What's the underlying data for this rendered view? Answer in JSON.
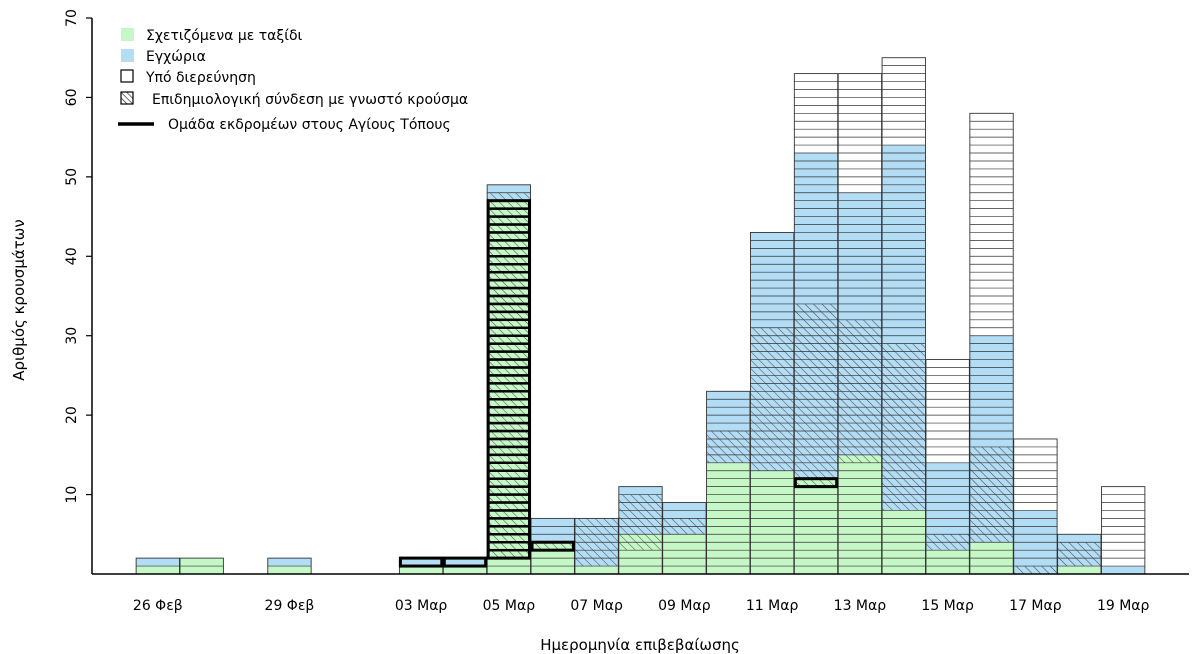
{
  "chart_data": {
    "type": "bar",
    "stacked": true,
    "xlabel": "Ημερομηνία επιβεβαίωσης",
    "ylabel": "Αριθμός κρουσμάτων",
    "ylim": [
      0,
      70
    ],
    "yticks": [
      10,
      20,
      30,
      40,
      50,
      60,
      70
    ],
    "grid": false,
    "legend_position": "top-left",
    "day_range": [
      "2020-02-25",
      "2020-03-20"
    ],
    "xtick_dates": [
      "2020-02-26",
      "2020-02-29",
      "2020-03-03",
      "2020-03-05",
      "2020-03-07",
      "2020-03-09",
      "2020-03-11",
      "2020-03-13",
      "2020-03-15",
      "2020-03-17",
      "2020-03-19"
    ],
    "xtick_labels": [
      "26 Φεβ",
      "29 Φεβ",
      "03 Μαρ",
      "05 Μαρ",
      "07 Μαρ",
      "09 Μαρ",
      "11 Μαρ",
      "13 Μαρ",
      "15 Μαρ",
      "17 Μαρ",
      "19 Μαρ"
    ],
    "colors": {
      "travel": "#c6f7c6",
      "local": "#b3dcf5",
      "outline": "#333333",
      "highlight": "#000000"
    },
    "legend": {
      "travel": "Σχετιζόμενα με ταξίδι",
      "local": "Εγχώρια",
      "under_investigation": "Υπό διερεύνηση",
      "epi_link": "Επιδημιολογική σύνδεση με γνωστό κρούσμα",
      "pilgrim_group": "Ομάδα εκδρομέων στους Αγίους Τόπους"
    },
    "bars": [
      {
        "date": "2020-02-26",
        "travel": 1,
        "travel_link": 0,
        "local_link": 0,
        "local": 1,
        "investigation": 0,
        "group": 0
      },
      {
        "date": "2020-02-27",
        "travel": 2,
        "travel_link": 0,
        "local_link": 0,
        "local": 0,
        "investigation": 0,
        "group": 0
      },
      {
        "date": "2020-02-29",
        "travel": 1,
        "travel_link": 0,
        "local_link": 0,
        "local": 1,
        "investigation": 0,
        "group": 0
      },
      {
        "date": "2020-03-03",
        "travel": 1,
        "travel_link": 0,
        "local_link": 0,
        "local": 1,
        "investigation": 0,
        "group": 1
      },
      {
        "date": "2020-03-04",
        "travel": 1,
        "travel_link": 0,
        "local_link": 0,
        "local": 1,
        "investigation": 0,
        "group": 1
      },
      {
        "date": "2020-03-05",
        "travel": 2,
        "travel_link": 45,
        "local_link": 1,
        "local": 1,
        "investigation": 0,
        "group": 45
      },
      {
        "date": "2020-03-06",
        "travel": 3,
        "travel_link": 1,
        "local_link": 0,
        "local": 3,
        "investigation": 0,
        "group": 1
      },
      {
        "date": "2020-03-07",
        "travel": 1,
        "travel_link": 0,
        "local_link": 6,
        "local": 0,
        "investigation": 0,
        "group": 0
      },
      {
        "date": "2020-03-08",
        "travel": 3,
        "travel_link": 2,
        "local_link": 5,
        "local": 1,
        "investigation": 0,
        "group": 0
      },
      {
        "date": "2020-03-09",
        "travel": 5,
        "travel_link": 0,
        "local_link": 2,
        "local": 2,
        "investigation": 0,
        "group": 0
      },
      {
        "date": "2020-03-10",
        "travel": 14,
        "travel_link": 0,
        "local_link": 4,
        "local": 5,
        "investigation": 0,
        "group": 0
      },
      {
        "date": "2020-03-11",
        "travel": 13,
        "travel_link": 0,
        "local_link": 18,
        "local": 12,
        "investigation": 0,
        "group": 0
      },
      {
        "date": "2020-03-12",
        "travel": 11,
        "travel_link": 1,
        "local_link": 22,
        "local": 19,
        "investigation": 10,
        "group": 1
      },
      {
        "date": "2020-03-13",
        "travel": 14,
        "travel_link": 1,
        "local_link": 17,
        "local": 16,
        "investigation": 15,
        "group": 0
      },
      {
        "date": "2020-03-14",
        "travel": 8,
        "travel_link": 0,
        "local_link": 21,
        "local": 25,
        "investigation": 11,
        "group": 0
      },
      {
        "date": "2020-03-15",
        "travel": 3,
        "travel_link": 0,
        "local_link": 2,
        "local": 9,
        "investigation": 13,
        "group": 0
      },
      {
        "date": "2020-03-16",
        "travel": 4,
        "travel_link": 0,
        "local_link": 12,
        "local": 14,
        "investigation": 28,
        "group": 0
      },
      {
        "date": "2020-03-17",
        "travel": 0,
        "travel_link": 0,
        "local_link": 1,
        "local": 7,
        "investigation": 9,
        "group": 0
      },
      {
        "date": "2020-03-18",
        "travel": 1,
        "travel_link": 0,
        "local_link": 3,
        "local": 1,
        "investigation": 0,
        "group": 0
      },
      {
        "date": "2020-03-19",
        "travel": 0,
        "travel_link": 0,
        "local_link": 0,
        "local": 1,
        "investigation": 10,
        "group": 0
      }
    ]
  }
}
